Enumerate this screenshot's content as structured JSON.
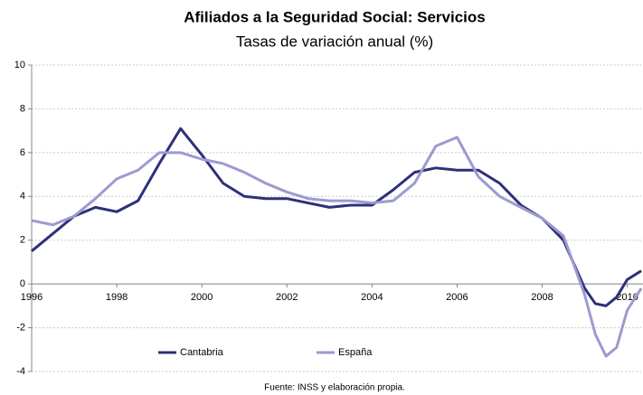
{
  "chart_data": {
    "type": "line",
    "title": "Afiliados a la Seguridad Social: Servicios",
    "subtitle": "Tasas de variación anual (%)",
    "source": "Fuente: INSS y elaboración propia.",
    "x": [
      1996,
      1996.5,
      1997,
      1997.5,
      1998,
      1998.5,
      1999,
      1999.5,
      2000,
      2000.5,
      2001,
      2001.5,
      2002,
      2002.5,
      2003,
      2003.5,
      2004,
      2004.5,
      2005,
      2005.5,
      2006,
      2006.5,
      2007,
      2007.5,
      2008,
      2008.5,
      2009,
      2009.25,
      2009.5,
      2009.75,
      2010,
      2010.33
    ],
    "series": [
      {
        "name": "Cantabria",
        "color": "#2e3079",
        "values": [
          1.5,
          2.3,
          3.1,
          3.5,
          3.3,
          3.8,
          5.5,
          7.1,
          5.9,
          4.6,
          4.0,
          3.9,
          3.9,
          3.7,
          3.5,
          3.6,
          3.6,
          4.3,
          5.1,
          5.3,
          5.2,
          5.2,
          4.6,
          3.6,
          3.0,
          2.0,
          -0.2,
          -0.9,
          -1.0,
          -0.6,
          0.2,
          0.6
        ]
      },
      {
        "name": "España",
        "color": "#9c9ad0",
        "values": [
          2.9,
          2.7,
          3.1,
          3.9,
          4.8,
          5.2,
          6.0,
          6.0,
          5.7,
          5.5,
          5.1,
          4.6,
          4.2,
          3.9,
          3.8,
          3.8,
          3.7,
          3.8,
          4.6,
          6.3,
          6.7,
          4.9,
          4.0,
          3.5,
          3.0,
          2.2,
          -0.5,
          -2.3,
          -3.3,
          -2.9,
          -1.2,
          -0.2
        ]
      }
    ],
    "xlim": [
      1996,
      2010.37
    ],
    "xticks": [
      1996,
      1998,
      2000,
      2002,
      2004,
      2006,
      2008,
      2010
    ],
    "ylim": [
      -4,
      10
    ],
    "yticks": [
      -4,
      -2,
      0,
      2,
      4,
      6,
      8,
      10
    ],
    "grid": true,
    "legend": "bottom"
  }
}
